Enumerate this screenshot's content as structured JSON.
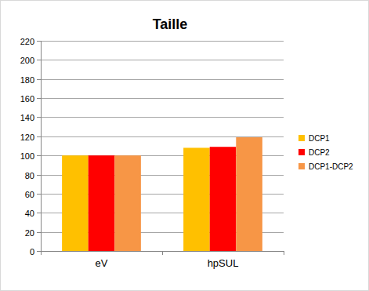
{
  "chart_data": {
    "type": "bar",
    "title": "Taille",
    "categories": [
      "eV",
      "hpSUL"
    ],
    "series": [
      {
        "name": "DCP1",
        "color": "#ffc000",
        "values": [
          100,
          108
        ]
      },
      {
        "name": "DCP2",
        "color": "#ff0000",
        "values": [
          100,
          109
        ]
      },
      {
        "name": "DCP1-DCP2",
        "color": "#f79646",
        "values": [
          100,
          119
        ]
      }
    ],
    "ylim": [
      0,
      220
    ],
    "yticks": [
      0,
      20,
      40,
      60,
      80,
      100,
      120,
      140,
      160,
      180,
      200,
      220
    ],
    "grid": true,
    "legend": "right"
  }
}
